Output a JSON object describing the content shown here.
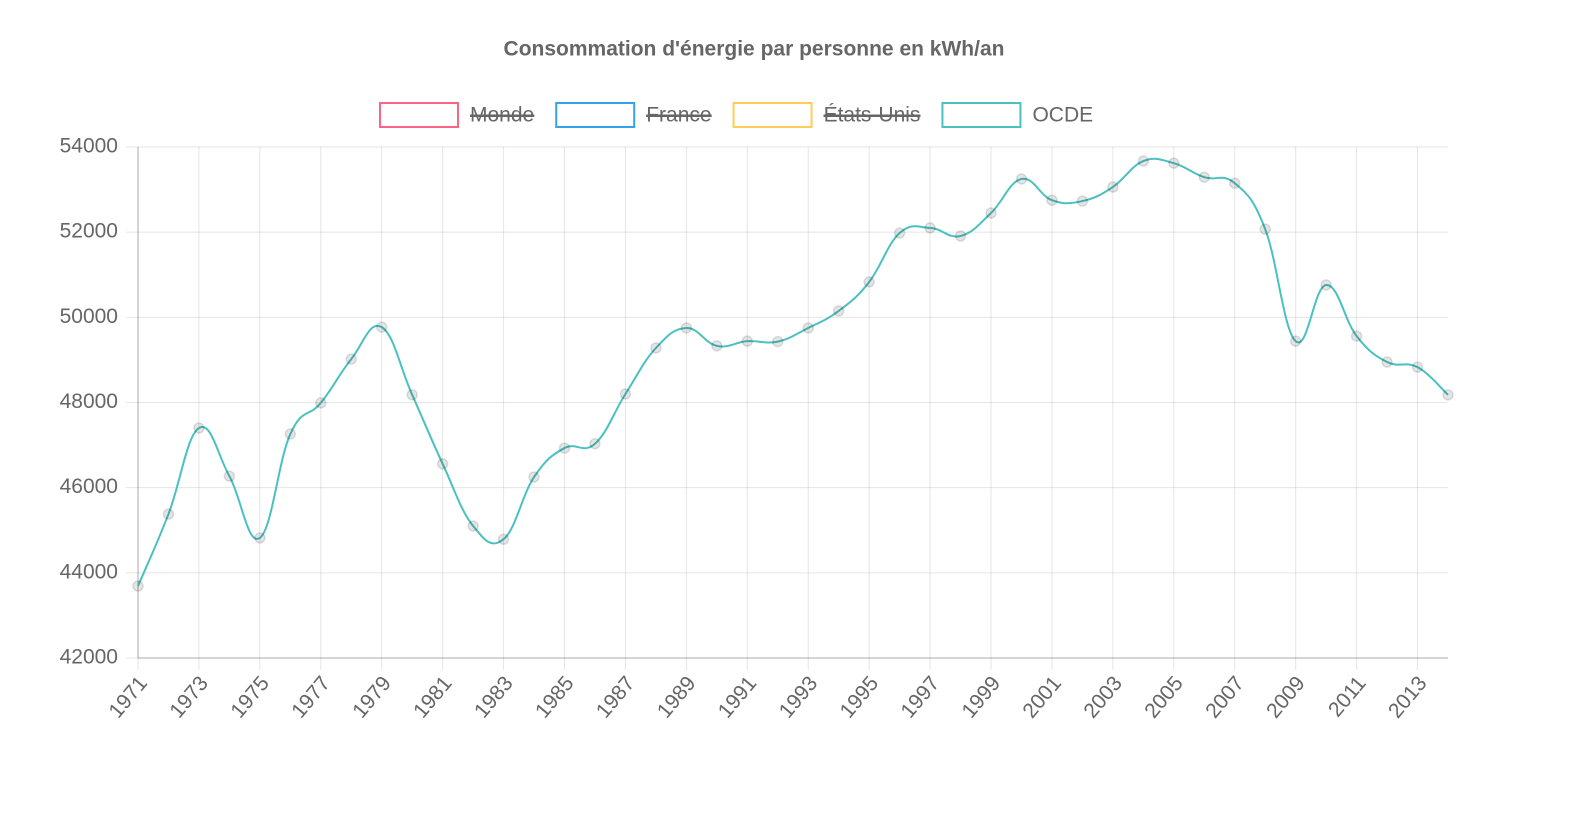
{
  "chart_data": {
    "type": "line",
    "title": "Consommation d'énergie par personne en kWh/an",
    "categories": [
      "1971",
      null,
      "1973",
      null,
      "1975",
      null,
      "1977",
      null,
      "1979",
      null,
      "1981",
      null,
      "1983",
      null,
      "1985",
      null,
      "1987",
      null,
      "1989",
      null,
      "1991",
      null,
      "1993",
      null,
      "1995",
      null,
      "1997",
      null,
      "1999",
      null,
      "2001",
      null,
      "2003",
      null,
      "2005",
      null,
      "2007",
      null,
      "2009",
      null,
      "2011",
      null,
      "2013",
      null
    ],
    "series": [
      {
        "name": "Monde",
        "color": "#ff6384",
        "hidden": true
      },
      {
        "name": "France",
        "color": "#36a2eb",
        "hidden": true
      },
      {
        "name": "États-Unis",
        "color": "#ffcd56",
        "hidden": true
      },
      {
        "name": "OCDE",
        "color": "#4bc0c0",
        "hidden": false,
        "values": [
          43690,
          45380,
          47400,
          46270,
          44820,
          47260,
          47990,
          49020,
          49770,
          48180,
          46560,
          45100,
          44790,
          46250,
          46930,
          47030,
          48200,
          49280,
          49750,
          49330,
          49440,
          49430,
          49750,
          50150,
          50830,
          51980,
          52100,
          51910,
          52450,
          53250,
          52750,
          52730,
          53060,
          53670,
          53620,
          53290,
          53150,
          52070,
          49440,
          50760,
          49560,
          48950,
          48830,
          48180
        ]
      }
    ],
    "ylim": [
      42000,
      54000
    ],
    "yticks": [
      42000,
      44000,
      46000,
      48000,
      50000,
      52000,
      54000
    ],
    "grid": true,
    "legend": "top"
  }
}
